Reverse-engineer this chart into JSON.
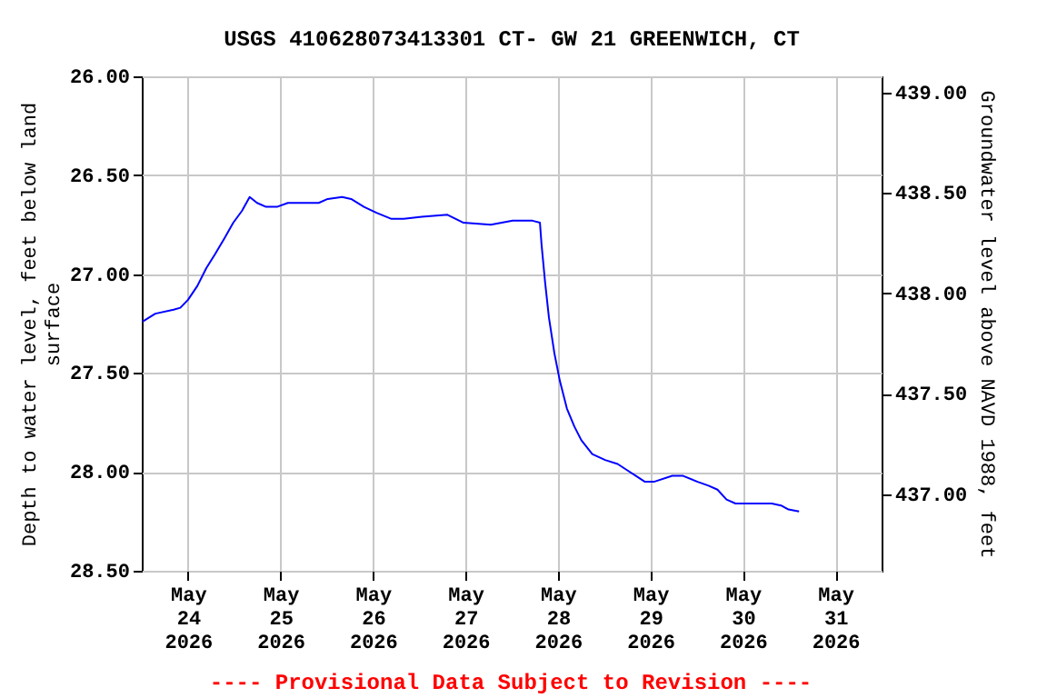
{
  "chart_data": {
    "type": "line",
    "title": "USGS 410628073413301 CT- GW   21 GREENWICH, CT",
    "xlabel": null,
    "ylabel": "Depth to water level, feet below land surface",
    "y2label": "Groundwater level above NAVD 1988, feet",
    "annotations": [
      "---- Provisional Data Subject to Revision ----"
    ],
    "x": [
      "2026-05-23T12:12",
      "2026-05-23T15:30",
      "2026-05-23T20:15",
      "2026-05-23T22:00",
      "2026-05-24T00:00",
      "2026-05-24T02:25",
      "2026-05-24T04:45",
      "2026-05-24T07:00",
      "2026-05-24T09:25",
      "2026-05-24T11:45",
      "2026-05-24T14:00",
      "2026-05-24T16:00",
      "2026-05-24T17:55",
      "2026-05-24T20:15",
      "2026-05-24T23:05",
      "2026-05-25T01:55",
      "2026-05-25T09:55",
      "2026-05-25T12:15",
      "2026-05-25T16:00",
      "2026-05-25T18:20",
      "2026-05-25T21:40",
      "2026-05-26T00:55",
      "2026-05-26T04:40",
      "2026-05-26T08:00",
      "2026-05-26T12:40",
      "2026-05-26T19:20",
      "2026-05-26T23:30",
      "2026-05-27T06:35",
      "2026-05-27T12:15",
      "2026-05-27T17:25",
      "2026-05-27T19:20",
      "2026-05-27T19:45",
      "2026-05-27T20:40",
      "2026-05-27T21:40",
      "2026-05-27T23:05",
      "2026-05-28T00:30",
      "2026-05-28T02:20",
      "2026-05-28T04:15",
      "2026-05-28T06:05",
      "2026-05-28T08:55",
      "2026-05-28T12:15",
      "2026-05-28T15:30",
      "2026-05-28T17:50",
      "2026-05-28T20:15",
      "2026-05-28T22:35",
      "2026-05-29T00:55",
      "2026-05-29T05:40",
      "2026-05-29T08:30",
      "2026-05-29T12:15",
      "2026-05-29T15:05",
      "2026-05-29T17:25",
      "2026-05-29T19:45",
      "2026-05-29T22:05",
      "2026-05-30T02:50",
      "2026-05-30T07:30",
      "2026-05-30T09:55",
      "2026-05-30T11:50",
      "2026-05-30T14:35"
    ],
    "series": [
      {
        "color": "#0000ff",
        "values": [
          27.24,
          27.2,
          27.18,
          27.17,
          27.13,
          27.06,
          26.97,
          26.9,
          26.82,
          26.74,
          26.68,
          26.61,
          26.64,
          26.66,
          26.66,
          26.64,
          26.64,
          26.62,
          26.61,
          26.62,
          26.66,
          26.69,
          26.72,
          26.72,
          26.71,
          26.7,
          26.74,
          26.75,
          26.73,
          26.73,
          26.74,
          26.85,
          27.04,
          27.22,
          27.4,
          27.54,
          27.68,
          27.77,
          27.84,
          27.91,
          27.94,
          27.96,
          27.99,
          28.02,
          28.05,
          28.05,
          28.02,
          28.02,
          28.05,
          28.07,
          28.09,
          28.14,
          28.16,
          28.16,
          28.16,
          28.17,
          28.19,
          28.2
        ]
      }
    ],
    "xlim": [
      "2026-05-23T12:00",
      "2026-05-31T12:00"
    ],
    "xticks": [
      {
        "value": "2026-05-24",
        "label": "May\n24\n2026"
      },
      {
        "value": "2026-05-25",
        "label": "May\n25\n2026"
      },
      {
        "value": "2026-05-26",
        "label": "May\n26\n2026"
      },
      {
        "value": "2026-05-27",
        "label": "May\n27\n2026"
      },
      {
        "value": "2026-05-28",
        "label": "May\n28\n2026"
      },
      {
        "value": "2026-05-29",
        "label": "May\n29\n2026"
      },
      {
        "value": "2026-05-30",
        "label": "May\n30\n2026"
      },
      {
        "value": "2026-05-31",
        "label": "May\n31\n2026"
      }
    ],
    "ylim": [
      28.5,
      26.0
    ],
    "yticks": [
      {
        "value": 26.0,
        "label": "26.00"
      },
      {
        "value": 26.5,
        "label": "26.50"
      },
      {
        "value": 27.0,
        "label": "27.00"
      },
      {
        "value": 27.5,
        "label": "27.50"
      },
      {
        "value": 28.0,
        "label": "28.00"
      },
      {
        "value": 28.5,
        "label": "28.50"
      }
    ],
    "y2lim": [
      436.62,
      439.08
    ],
    "y2ticks": [
      {
        "value": 437.0,
        "label": "437.00"
      },
      {
        "value": 437.5,
        "label": "437.50"
      },
      {
        "value": 438.0,
        "label": "438.00"
      },
      {
        "value": 438.5,
        "label": "438.50"
      },
      {
        "value": 439.0,
        "label": "439.00"
      }
    ],
    "grid": true,
    "marker": "none",
    "line_style": "solid"
  }
}
